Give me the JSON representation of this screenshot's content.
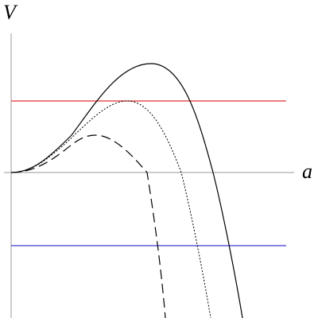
{
  "axes": {
    "y_label": "V",
    "x_label": "a"
  }
}
